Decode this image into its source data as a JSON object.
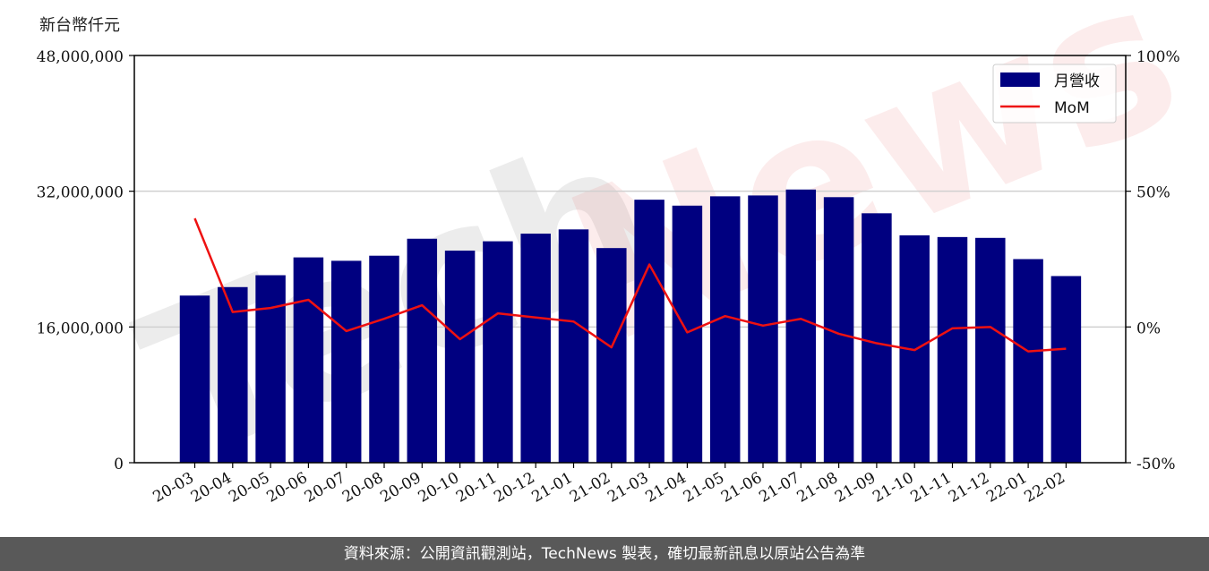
{
  "unit_label": "新台幣仟元",
  "footer_text": "資料來源：公開資訊觀測站，TechNews 製表，確切最新訊息以原站公告為準",
  "watermark": {
    "part1": "Tech",
    "part2": "News"
  },
  "colors": {
    "bar": "#000080",
    "line": "#ee1111",
    "footer_bg": "#595959"
  },
  "chart_data": {
    "type": "bar",
    "categories": [
      "20-03",
      "20-04",
      "20-05",
      "20-06",
      "20-07",
      "20-08",
      "20-09",
      "20-10",
      "20-11",
      "20-12",
      "21-01",
      "21-02",
      "21-03",
      "21-04",
      "21-05",
      "21-06",
      "21-07",
      "21-08",
      "21-09",
      "21-10",
      "21-11",
      "21-12",
      "22-01",
      "22-02"
    ],
    "series": [
      {
        "name": "月營收",
        "type": "bar",
        "axis": "left",
        "values": [
          19700000,
          20700000,
          22100000,
          24200000,
          23800000,
          24400000,
          26400000,
          25000000,
          26100000,
          27000000,
          27500000,
          25300000,
          31000000,
          30300000,
          31400000,
          31500000,
          32200000,
          31300000,
          29400000,
          26800000,
          26600000,
          26500000,
          24000000,
          22000000
        ]
      },
      {
        "name": "MoM",
        "type": "line",
        "axis": "right",
        "values": [
          40,
          5.5,
          7,
          10,
          -1.5,
          3,
          8,
          -4.5,
          5,
          3.5,
          2,
          -7.5,
          23,
          -2,
          4,
          0.5,
          3,
          -2.5,
          -6,
          -8.5,
          -0.5,
          0,
          -9,
          -8
        ]
      }
    ],
    "yaxis_left": {
      "ylim": [
        0,
        48000000
      ],
      "ticks": [
        "0",
        "16,000,000",
        "32,000,000",
        "48,000,000"
      ]
    },
    "yaxis_right": {
      "ylim": [
        -50,
        100
      ],
      "ticks": [
        "-50%",
        "0%",
        "50%",
        "100%"
      ]
    },
    "grid": "horizontal",
    "legend_placement": "top-right"
  }
}
